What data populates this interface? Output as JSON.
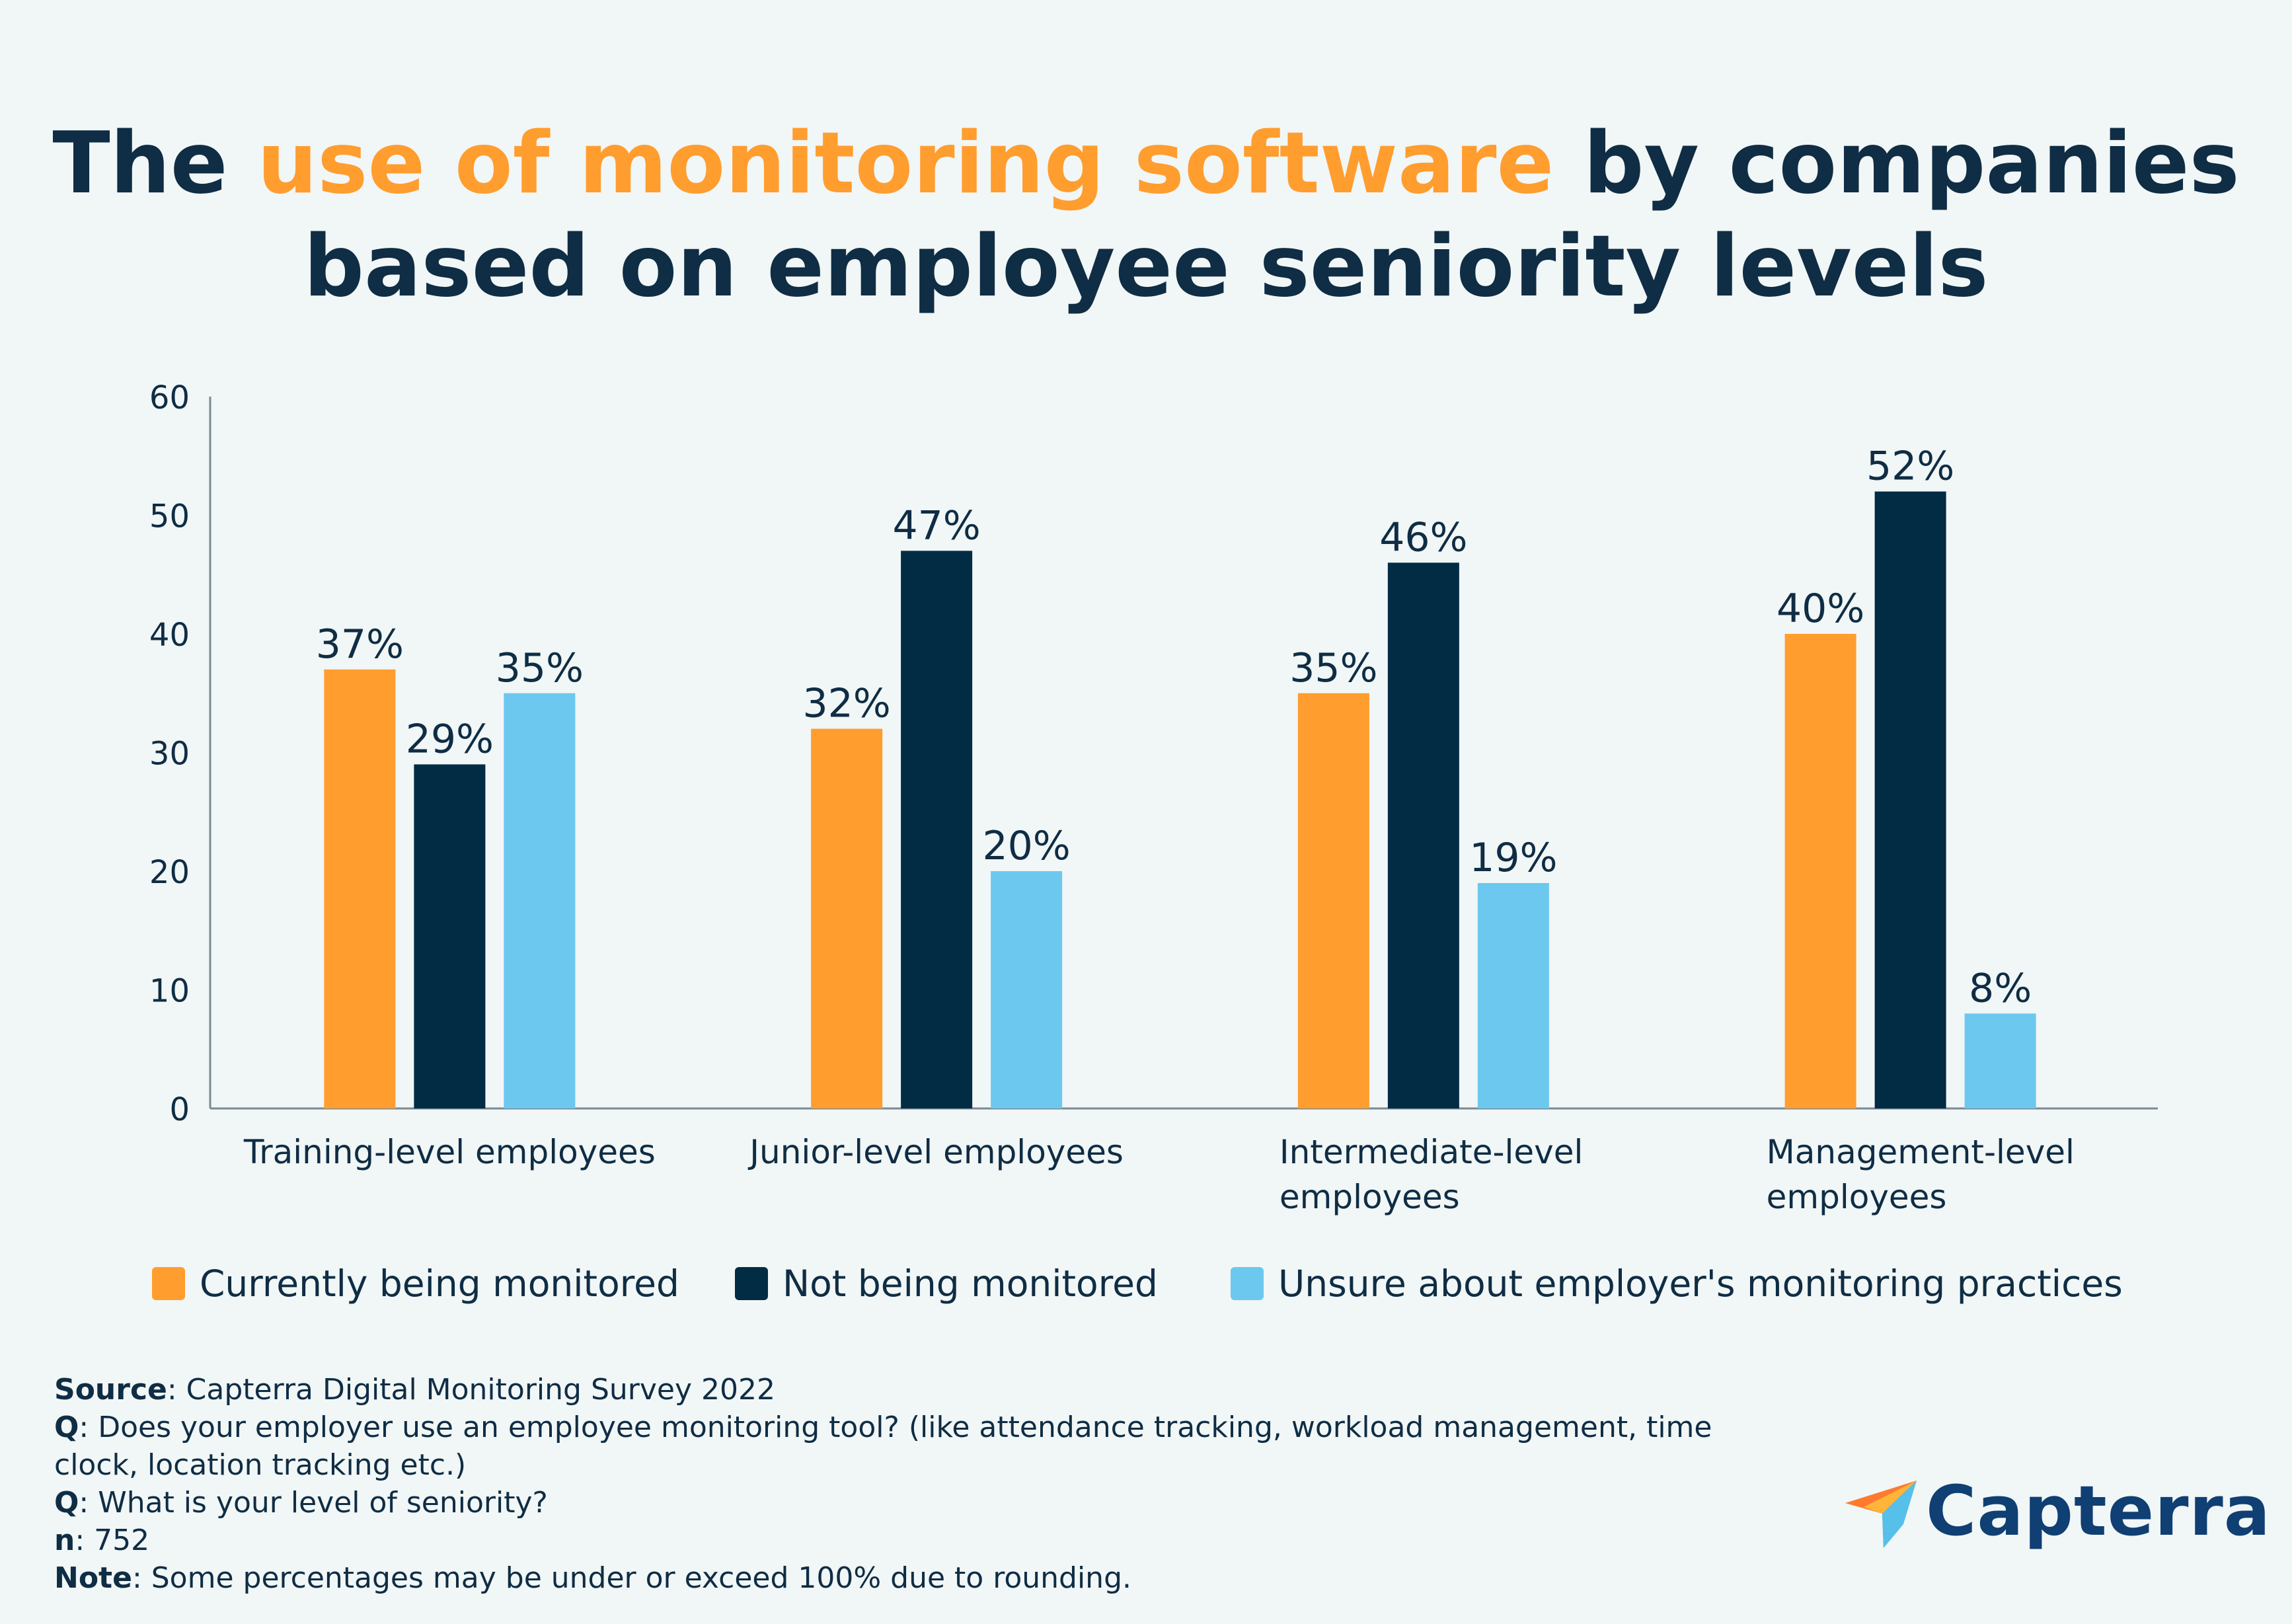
{
  "title": {
    "part1": "The ",
    "highlight": "use of monitoring software",
    "part2": " by companies",
    "line2": "based on employee seniority levels"
  },
  "colors": {
    "orange": "#ff9d2e",
    "navy": "#022c44",
    "light_blue": "#6cc8ee",
    "text": "#0f2d44"
  },
  "chart_data": {
    "type": "bar",
    "title": "The use of monitoring software by companies based on employee seniority levels",
    "categories": [
      [
        "Training-level employees"
      ],
      [
        "Junior-level employees"
      ],
      [
        "Intermediate-level",
        "employees"
      ],
      [
        "Management-level",
        "employees"
      ]
    ],
    "series": [
      {
        "name": "Currently being monitored",
        "color": "#ff9d2e",
        "values": [
          37,
          32,
          35,
          40
        ],
        "labels": [
          "37%",
          "32%",
          "35%",
          "40%"
        ]
      },
      {
        "name": "Not being monitored",
        "color": "#022c44",
        "values": [
          29,
          47,
          46,
          52
        ],
        "labels": [
          "29%",
          "47%",
          "46%",
          "52%"
        ]
      },
      {
        "name": "Unsure about employer's monitoring practices",
        "color": "#6cc8ee",
        "values": [
          35,
          20,
          19,
          8
        ],
        "labels": [
          "35%",
          "20%",
          "19%",
          "8%"
        ]
      }
    ],
    "yticks": [
      0,
      10,
      20,
      30,
      40,
      50,
      60
    ],
    "ylim": [
      0,
      60
    ],
    "xlabel": "",
    "ylabel": "",
    "grid": false,
    "legend_position": "bottom"
  },
  "legend": {
    "items": [
      "Currently being monitored",
      "Not being monitored",
      "Unsure about employer's monitoring practices"
    ]
  },
  "footnote": {
    "source_label": "Source",
    "source_text": ": Capterra Digital Monitoring Survey 2022",
    "q1_label": "Q",
    "q1_text_line1": ": Does your employer use an employee monitoring tool? (like attendance tracking, workload management, time",
    "q1_text_line2": "clock, location tracking etc.)",
    "q2_label": "Q",
    "q2_text": ": What is your level of seniority?",
    "n_label": "n",
    "n_text": ": 752",
    "note_label": "Note",
    "note_text": ": Some percentages may be under or exceed 100% due to rounding."
  },
  "logo": {
    "text": "Capterra"
  }
}
